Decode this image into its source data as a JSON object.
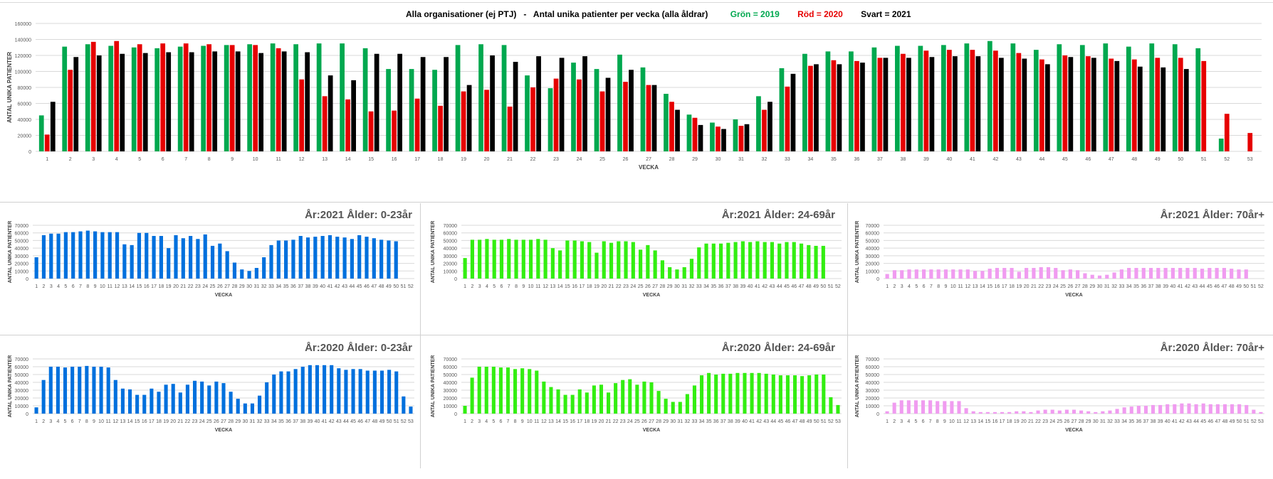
{
  "colors": {
    "c2019": "#00a84f",
    "c2020": "#e60000",
    "c2021": "#000000",
    "blue": "#0070dd",
    "green": "#33ee11",
    "pink": "#f09cf0",
    "grid": "#d9d9d9",
    "text": "#555555"
  },
  "main": {
    "title": "Alla organisationer (ej PTJ)   -   Antal unika patienter per vecka (alla åldrar)",
    "legend": [
      {
        "label": "Grön = 2019",
        "color": "#00a84f"
      },
      {
        "label": "Röd = 2020",
        "color": "#e60000"
      },
      {
        "label": "Svart = 2021",
        "color": "#000000"
      }
    ]
  },
  "chart_data": [
    {
      "type": "bar",
      "title": "Alla organisationer (ej PTJ)   -   Antal unika patienter per vecka (alla åldrar)",
      "xlabel": "VECKA",
      "ylabel": "ANTAL UNIKA PATIENTER",
      "ylim": [
        0,
        160000
      ],
      "yticks": [
        0,
        20000,
        40000,
        60000,
        80000,
        100000,
        120000,
        140000,
        160000
      ],
      "grid": true,
      "categories": [
        "1",
        "2",
        "3",
        "4",
        "5",
        "6",
        "7",
        "8",
        "9",
        "10",
        "11",
        "12",
        "13",
        "14",
        "15",
        "16",
        "17",
        "18",
        "19",
        "20",
        "21",
        "22",
        "23",
        "24",
        "25",
        "26",
        "27",
        "28",
        "29",
        "30",
        "31",
        "32",
        "33",
        "34",
        "35",
        "36",
        "37",
        "38",
        "39",
        "40",
        "41",
        "42",
        "43",
        "44",
        "45",
        "46",
        "47",
        "48",
        "49",
        "50",
        "51",
        "52",
        "53"
      ],
      "series": [
        {
          "name": "Grön = 2019",
          "color": "#00a84f",
          "values": [
            45000,
            131000,
            134000,
            132000,
            130000,
            129000,
            131000,
            132000,
            133000,
            134000,
            135000,
            134000,
            135000,
            135000,
            129000,
            103000,
            103000,
            102000,
            133000,
            134000,
            133000,
            95000,
            79000,
            111000,
            103000,
            121000,
            105000,
            72000,
            46000,
            36000,
            40000,
            69000,
            104000,
            122000,
            125000,
            125000,
            130000,
            132000,
            132000,
            133000,
            135000,
            138000,
            135000,
            127000,
            134000,
            133000,
            135000,
            131000,
            135000,
            134000,
            129000,
            16000,
            null
          ]
        },
        {
          "name": "Röd = 2020",
          "color": "#e60000",
          "values": [
            21000,
            102000,
            137000,
            138000,
            134000,
            135000,
            135000,
            134000,
            133000,
            133000,
            129000,
            90000,
            69000,
            65000,
            50000,
            51000,
            66000,
            57000,
            75000,
            77000,
            56000,
            80000,
            91000,
            90000,
            75000,
            87000,
            83000,
            62000,
            42000,
            31000,
            32000,
            52000,
            81000,
            107000,
            114000,
            113000,
            117000,
            122000,
            126000,
            127000,
            127000,
            126000,
            123000,
            115000,
            120000,
            119000,
            116000,
            115000,
            117000,
            117000,
            113000,
            47000,
            23000
          ]
        },
        {
          "name": "Svart = 2021",
          "color": "#000000",
          "values": [
            62000,
            118000,
            120000,
            122000,
            123000,
            124000,
            124000,
            125000,
            125000,
            123000,
            125000,
            124000,
            95000,
            89000,
            122000,
            122000,
            118000,
            118000,
            83000,
            120000,
            112000,
            119000,
            117000,
            119000,
            92000,
            102000,
            83000,
            52000,
            33000,
            28000,
            34000,
            62000,
            97000,
            109000,
            109000,
            111000,
            117000,
            117000,
            118000,
            119000,
            119000,
            117000,
            116000,
            109000,
            118000,
            117000,
            113000,
            106000,
            105000,
            103000,
            null,
            null,
            null
          ]
        }
      ]
    },
    {
      "type": "bar",
      "title": "År:2021   Ålder: 0-23år",
      "xlabel": "VECKA",
      "ylabel": "ANTAL UNIKA PATIENTER",
      "ylim": [
        0,
        70000
      ],
      "yticks": [
        0,
        10000,
        20000,
        30000,
        40000,
        50000,
        60000,
        70000
      ],
      "grid": true,
      "categories": [
        "1",
        "2",
        "3",
        "4",
        "5",
        "6",
        "7",
        "8",
        "9",
        "10",
        "11",
        "12",
        "13",
        "14",
        "15",
        "16",
        "17",
        "18",
        "19",
        "20",
        "21",
        "22",
        "23",
        "24",
        "25",
        "26",
        "27",
        "28",
        "29",
        "30",
        "31",
        "32",
        "33",
        "34",
        "35",
        "36",
        "37",
        "38",
        "39",
        "40",
        "41",
        "42",
        "43",
        "44",
        "45",
        "46",
        "47",
        "48",
        "49",
        "50",
        "51",
        "52"
      ],
      "series": [
        {
          "color": "#0070dd",
          "values": [
            28000,
            57000,
            59000,
            59000,
            61000,
            61000,
            62000,
            63000,
            62000,
            61000,
            61000,
            61000,
            45000,
            44000,
            60000,
            60000,
            56000,
            56000,
            40000,
            57000,
            53000,
            56000,
            52000,
            58000,
            43000,
            46000,
            36000,
            21000,
            12000,
            10000,
            14000,
            28000,
            44000,
            50000,
            50000,
            51000,
            56000,
            54000,
            55000,
            56000,
            57000,
            55000,
            54000,
            52000,
            57000,
            55000,
            53000,
            51000,
            50000,
            49000,
            null,
            null
          ]
        }
      ]
    },
    {
      "type": "bar",
      "title": "År:2021   Ålder: 24-69år",
      "xlabel": "VECKA",
      "ylabel": "ANTAL UNIKA PATIENTER",
      "ylim": [
        0,
        70000
      ],
      "yticks": [
        0,
        10000,
        20000,
        30000,
        40000,
        50000,
        60000,
        70000
      ],
      "grid": true,
      "categories": [
        "1",
        "2",
        "3",
        "4",
        "5",
        "6",
        "7",
        "8",
        "9",
        "10",
        "11",
        "12",
        "13",
        "14",
        "15",
        "16",
        "17",
        "18",
        "19",
        "20",
        "21",
        "22",
        "23",
        "24",
        "25",
        "26",
        "27",
        "28",
        "29",
        "30",
        "31",
        "32",
        "33",
        "34",
        "35",
        "36",
        "37",
        "38",
        "39",
        "40",
        "41",
        "42",
        "43",
        "44",
        "45",
        "46",
        "47",
        "48",
        "49",
        "50",
        "51",
        "52"
      ],
      "series": [
        {
          "color": "#33ee11",
          "values": [
            27000,
            51000,
            51000,
            52000,
            51000,
            51000,
            52000,
            51000,
            51000,
            51000,
            52000,
            51000,
            40000,
            37000,
            50000,
            50000,
            49000,
            48000,
            34000,
            49000,
            47000,
            49000,
            49000,
            48000,
            38000,
            44000,
            37000,
            24000,
            15000,
            12000,
            15000,
            26000,
            41000,
            46000,
            46000,
            46000,
            47000,
            48000,
            49000,
            48000,
            49000,
            48000,
            48000,
            46000,
            48000,
            48000,
            46000,
            44000,
            43000,
            43000,
            null,
            null
          ]
        }
      ]
    },
    {
      "type": "bar",
      "title": "År:2021   Ålder: 70år+",
      "xlabel": "VECKA",
      "ylabel": "ANTAL UNIKA PATIENTER",
      "ylim": [
        0,
        70000
      ],
      "yticks": [
        0,
        10000,
        20000,
        30000,
        40000,
        50000,
        60000,
        70000
      ],
      "grid": true,
      "categories": [
        "1",
        "2",
        "3",
        "4",
        "5",
        "6",
        "7",
        "8",
        "9",
        "10",
        "11",
        "12",
        "13",
        "14",
        "15",
        "16",
        "17",
        "18",
        "19",
        "20",
        "21",
        "22",
        "23",
        "24",
        "25",
        "26",
        "27",
        "28",
        "29",
        "30",
        "31",
        "32",
        "33",
        "34",
        "35",
        "36",
        "37",
        "38",
        "39",
        "40",
        "41",
        "42",
        "43",
        "44",
        "45",
        "46",
        "47",
        "48",
        "49",
        "50",
        "51",
        "52"
      ],
      "series": [
        {
          "color": "#f09cf0",
          "values": [
            6000,
            11000,
            11000,
            12000,
            12000,
            12000,
            12000,
            12000,
            12000,
            12000,
            12000,
            12000,
            10000,
            10000,
            13000,
            14000,
            14000,
            14000,
            9000,
            14000,
            14000,
            15000,
            15000,
            14000,
            11000,
            12000,
            11000,
            7000,
            5000,
            4000,
            5000,
            8000,
            12000,
            14000,
            14000,
            14000,
            14000,
            14000,
            14000,
            14000,
            14000,
            14000,
            14000,
            13000,
            14000,
            14000,
            14000,
            13000,
            12000,
            12000,
            null,
            null
          ]
        }
      ]
    },
    {
      "type": "bar",
      "title": "År:2020   Ålder: 0-23år",
      "xlabel": "VECKA",
      "ylabel": "ANTAL UNIKA PATIENTER",
      "ylim": [
        0,
        70000
      ],
      "yticks": [
        0,
        10000,
        20000,
        30000,
        40000,
        50000,
        60000,
        70000
      ],
      "grid": true,
      "categories": [
        "1",
        "2",
        "3",
        "4",
        "5",
        "6",
        "7",
        "8",
        "9",
        "10",
        "11",
        "12",
        "13",
        "14",
        "15",
        "16",
        "17",
        "18",
        "19",
        "20",
        "21",
        "22",
        "23",
        "24",
        "25",
        "26",
        "27",
        "28",
        "29",
        "30",
        "31",
        "32",
        "33",
        "34",
        "35",
        "36",
        "37",
        "38",
        "39",
        "40",
        "41",
        "42",
        "43",
        "44",
        "45",
        "46",
        "47",
        "48",
        "49",
        "50",
        "51",
        "52",
        "53"
      ],
      "series": [
        {
          "color": "#0070dd",
          "values": [
            8000,
            43000,
            60000,
            60000,
            59000,
            60000,
            60000,
            61000,
            60000,
            60000,
            59000,
            43000,
            32000,
            31000,
            24000,
            24000,
            32000,
            28000,
            37000,
            38000,
            27000,
            37000,
            42000,
            41000,
            36000,
            41000,
            39000,
            28000,
            19000,
            13000,
            13000,
            23000,
            40000,
            50000,
            54000,
            54000,
            57000,
            60000,
            62000,
            62000,
            62000,
            62000,
            58000,
            56000,
            57000,
            57000,
            55000,
            55000,
            55000,
            56000,
            54000,
            22000,
            9000
          ]
        }
      ]
    },
    {
      "type": "bar",
      "title": "År:2020   Ålder: 24-69år",
      "xlabel": "VECKA",
      "ylabel": "ANTAL UNIKA PATIENTER",
      "ylim": [
        0,
        70000
      ],
      "yticks": [
        0,
        10000,
        20000,
        30000,
        40000,
        50000,
        60000,
        70000
      ],
      "grid": true,
      "categories": [
        "1",
        "2",
        "3",
        "4",
        "5",
        "6",
        "7",
        "8",
        "9",
        "10",
        "11",
        "12",
        "13",
        "14",
        "15",
        "16",
        "17",
        "18",
        "19",
        "20",
        "21",
        "22",
        "23",
        "24",
        "25",
        "26",
        "27",
        "28",
        "29",
        "30",
        "31",
        "32",
        "33",
        "34",
        "35",
        "36",
        "37",
        "38",
        "39",
        "40",
        "41",
        "42",
        "43",
        "44",
        "45",
        "46",
        "47",
        "48",
        "49",
        "50",
        "51",
        "52",
        "53"
      ],
      "series": [
        {
          "color": "#33ee11",
          "values": [
            10000,
            46000,
            60000,
            60000,
            60000,
            59000,
            59000,
            57000,
            58000,
            57000,
            55000,
            41000,
            34000,
            31000,
            24000,
            24000,
            31000,
            27000,
            36000,
            37000,
            27000,
            39000,
            43000,
            44000,
            37000,
            41000,
            40000,
            29000,
            19000,
            15000,
            15000,
            25000,
            36000,
            49000,
            52000,
            50000,
            51000,
            51000,
            52000,
            52000,
            52000,
            52000,
            51000,
            50000,
            49000,
            49000,
            49000,
            48000,
            49000,
            50000,
            50000,
            21000,
            11000
          ]
        }
      ]
    },
    {
      "type": "bar",
      "title": "År:2020   Ålder: 70år+",
      "xlabel": "VECKA",
      "ylabel": "ANTAL UNIKA PATIENTER",
      "ylim": [
        0,
        70000
      ],
      "yticks": [
        0,
        10000,
        20000,
        30000,
        40000,
        50000,
        60000,
        70000
      ],
      "grid": true,
      "categories": [
        "1",
        "2",
        "3",
        "4",
        "5",
        "6",
        "7",
        "8",
        "9",
        "10",
        "11",
        "12",
        "13",
        "14",
        "15",
        "16",
        "17",
        "18",
        "19",
        "20",
        "21",
        "22",
        "23",
        "24",
        "25",
        "26",
        "27",
        "28",
        "29",
        "30",
        "31",
        "32",
        "33",
        "34",
        "35",
        "36",
        "37",
        "38",
        "39",
        "40",
        "41",
        "42",
        "43",
        "44",
        "45",
        "46",
        "47",
        "48",
        "49",
        "50",
        "51",
        "52",
        "53"
      ],
      "series": [
        {
          "color": "#f09cf0",
          "values": [
            3000,
            14000,
            17000,
            17000,
            17000,
            17000,
            17000,
            16000,
            16000,
            16000,
            16000,
            7000,
            3000,
            2000,
            2000,
            2000,
            2000,
            2000,
            3000,
            3000,
            2000,
            4000,
            5000,
            5000,
            4000,
            5000,
            5000,
            4000,
            3000,
            2000,
            3000,
            4000,
            6000,
            8000,
            9000,
            10000,
            10000,
            11000,
            11000,
            12000,
            12000,
            13000,
            13000,
            12000,
            13000,
            12000,
            12000,
            12000,
            12000,
            12000,
            11000,
            5000,
            2000
          ]
        }
      ]
    }
  ]
}
